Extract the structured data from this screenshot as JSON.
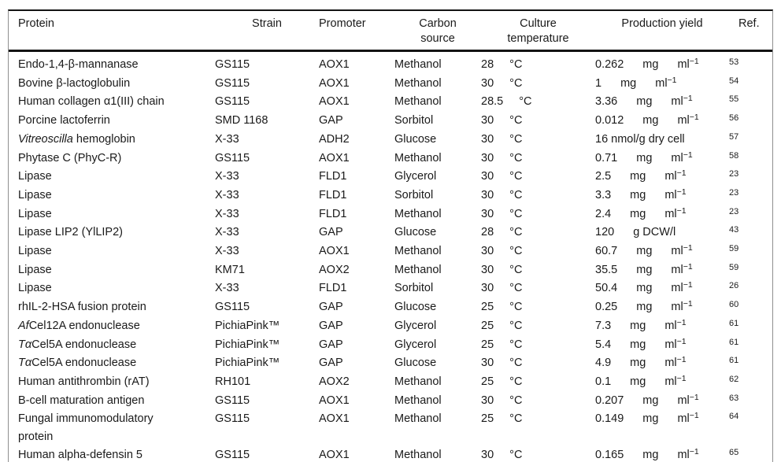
{
  "header": {
    "protein": "Protein",
    "strain": "Strain",
    "promoter": "Promoter",
    "carbon_line1": "Carbon",
    "carbon_line2": "source",
    "temp_line1": "Culture",
    "temp_line2": "temperature",
    "yield": "Production yield",
    "ref": "Ref."
  },
  "rows": [
    {
      "protein_italic": "",
      "protein": "Endo-1,4-β-mannanase",
      "strain": "GS115",
      "promoter": "AOX1",
      "carbon": "Methanol",
      "temp_value": "28",
      "temp_unit": "°C",
      "yield_value": "0.262",
      "yield_unit1": "mg",
      "yield_unit2": "ml",
      "yield_sup": "−1",
      "ref": "53"
    },
    {
      "protein_italic": "",
      "protein": "Bovine β-lactoglobulin",
      "strain": "GS115",
      "promoter": "AOX1",
      "carbon": "Methanol",
      "temp_value": "30",
      "temp_unit": "°C",
      "yield_value": "1",
      "yield_unit1": "mg",
      "yield_unit2": "ml",
      "yield_sup": "−1",
      "ref": "54"
    },
    {
      "protein_italic": "",
      "protein": "Human collagen α1(III) chain",
      "strain": "GS115",
      "promoter": "AOX1",
      "carbon": "Methanol",
      "temp_value": "28.5",
      "temp_unit": "°C",
      "yield_value": "3.36",
      "yield_unit1": "mg",
      "yield_unit2": "ml",
      "yield_sup": "−1",
      "ref": "55"
    },
    {
      "protein_italic": "",
      "protein": "Porcine lactoferrin",
      "strain": "SMD 1168",
      "promoter": "GAP",
      "carbon": "Sorbitol",
      "temp_value": "30",
      "temp_unit": "°C",
      "yield_value": "0.012",
      "yield_unit1": "mg",
      "yield_unit2": "ml",
      "yield_sup": "−1",
      "ref": "56"
    },
    {
      "protein_italic": "Vitreoscilla",
      "protein": " hemoglobin",
      "strain": "X-33",
      "promoter": "ADH2",
      "carbon": "Glucose",
      "temp_value": "30",
      "temp_unit": "°C",
      "yield_value": "16 nmol/g dry cell",
      "yield_unit1": "",
      "yield_unit2": "",
      "yield_sup": "",
      "ref": "57"
    },
    {
      "protein_italic": "",
      "protein": "Phytase C (PhyC-R)",
      "strain": "GS115",
      "promoter": "AOX1",
      "carbon": "Methanol",
      "temp_value": "30",
      "temp_unit": "°C",
      "yield_value": "0.71",
      "yield_unit1": "mg",
      "yield_unit2": "ml",
      "yield_sup": "−1",
      "ref": "58"
    },
    {
      "protein_italic": "",
      "protein": "Lipase",
      "strain": "X-33",
      "promoter": "FLD1",
      "carbon": "Glycerol",
      "temp_value": "30",
      "temp_unit": "°C",
      "yield_value": "2.5",
      "yield_unit1": "mg",
      "yield_unit2": "ml",
      "yield_sup": "−1",
      "ref": "23"
    },
    {
      "protein_italic": "",
      "protein": "Lipase",
      "strain": "X-33",
      "promoter": "FLD1",
      "carbon": "Sorbitol",
      "temp_value": "30",
      "temp_unit": "°C",
      "yield_value": "3.3",
      "yield_unit1": "mg",
      "yield_unit2": "ml",
      "yield_sup": "−1",
      "ref": "23"
    },
    {
      "protein_italic": "",
      "protein": "Lipase",
      "strain": "X-33",
      "promoter": "FLD1",
      "carbon": "Methanol",
      "temp_value": "30",
      "temp_unit": "°C",
      "yield_value": "2.4",
      "yield_unit1": "mg",
      "yield_unit2": "ml",
      "yield_sup": "−1",
      "ref": "23"
    },
    {
      "protein_italic": "",
      "protein": "Lipase LIP2 (YlLIP2)",
      "strain": "X-33",
      "promoter": "GAP",
      "carbon": "Glucose",
      "temp_value": "28",
      "temp_unit": "°C",
      "yield_value": "120",
      "yield_unit1": "g DCW/l",
      "yield_unit2": "",
      "yield_sup": "",
      "ref": "43"
    },
    {
      "protein_italic": "",
      "protein": "Lipase",
      "strain": "X-33",
      "promoter": "AOX1",
      "carbon": "Methanol",
      "temp_value": "30",
      "temp_unit": "°C",
      "yield_value": "60.7",
      "yield_unit1": "mg",
      "yield_unit2": "ml",
      "yield_sup": "−1",
      "ref": "59"
    },
    {
      "protein_italic": "",
      "protein": "Lipase",
      "strain": "KM71",
      "promoter": "AOX2",
      "carbon": "Methanol",
      "temp_value": "30",
      "temp_unit": "°C",
      "yield_value": "35.5",
      "yield_unit1": "mg",
      "yield_unit2": "ml",
      "yield_sup": "−1",
      "ref": "59"
    },
    {
      "protein_italic": "",
      "protein": "Lipase",
      "strain": "X-33",
      "promoter": "FLD1",
      "carbon": "Sorbitol",
      "temp_value": "30",
      "temp_unit": "°C",
      "yield_value": "50.4",
      "yield_unit1": "mg",
      "yield_unit2": "ml",
      "yield_sup": "−1",
      "ref": "26"
    },
    {
      "protein_italic": "",
      "protein": "rhIL-2-HSA fusion protein",
      "strain": "GS115",
      "promoter": "GAP",
      "carbon": "Glucose",
      "temp_value": "25",
      "temp_unit": "°C",
      "yield_value": "0.25",
      "yield_unit1": "mg",
      "yield_unit2": "ml",
      "yield_sup": "−1",
      "ref": "60"
    },
    {
      "protein_italic": "Af",
      "protein": "Cel12A endonuclease",
      "strain": "PichiaPink™",
      "promoter": "GAP",
      "carbon": "Glycerol",
      "temp_value": "25",
      "temp_unit": "°C",
      "yield_value": "7.3",
      "yield_unit1": "mg",
      "yield_unit2": "ml",
      "yield_sup": "−1",
      "ref": "61"
    },
    {
      "protein_italic": "Tα",
      "protein": "Cel5A endonuclease",
      "strain": "PichiaPink™",
      "promoter": "GAP",
      "carbon": "Glycerol",
      "temp_value": "25",
      "temp_unit": "°C",
      "yield_value": "5.4",
      "yield_unit1": "mg",
      "yield_unit2": "ml",
      "yield_sup": "−1",
      "ref": "61"
    },
    {
      "protein_italic": "Tα",
      "protein": "Cel5A endonuclease",
      "strain": "PichiaPink™",
      "promoter": "GAP",
      "carbon": "Glucose",
      "temp_value": "30",
      "temp_unit": "°C",
      "yield_value": "4.9",
      "yield_unit1": "mg",
      "yield_unit2": "ml",
      "yield_sup": "−1",
      "ref": "61"
    },
    {
      "protein_italic": "",
      "protein": "Human antithrombin (rAT)",
      "strain": "RH101",
      "promoter": "AOX2",
      "carbon": "Methanol",
      "temp_value": "25",
      "temp_unit": "°C",
      "yield_value": "0.1",
      "yield_unit1": "mg",
      "yield_unit2": "ml",
      "yield_sup": "−1",
      "ref": "62"
    },
    {
      "protein_italic": "",
      "protein": "B-cell maturation antigen",
      "strain": "GS115",
      "promoter": "AOX1",
      "carbon": "Methanol",
      "temp_value": "30",
      "temp_unit": "°C",
      "yield_value": "0.207",
      "yield_unit1": "mg",
      "yield_unit2": "ml",
      "yield_sup": "−1",
      "ref": "63"
    },
    {
      "protein_italic": "",
      "protein": "Fungal immunomodulatory\nprotein",
      "strain": "GS115",
      "promoter": "AOX1",
      "carbon": "Methanol",
      "temp_value": "25",
      "temp_unit": "°C",
      "yield_value": "0.149",
      "yield_unit1": "mg",
      "yield_unit2": "ml",
      "yield_sup": "−1",
      "ref": "64"
    },
    {
      "protein_italic": "",
      "protein": "Human alpha-defensin 5",
      "strain": "GS115",
      "promoter": "AOX1",
      "carbon": "Methanol",
      "temp_value": "30",
      "temp_unit": "°C",
      "yield_value": "0.165",
      "yield_unit1": "mg",
      "yield_unit2": "ml",
      "yield_sup": "−1",
      "ref": "65"
    }
  ]
}
